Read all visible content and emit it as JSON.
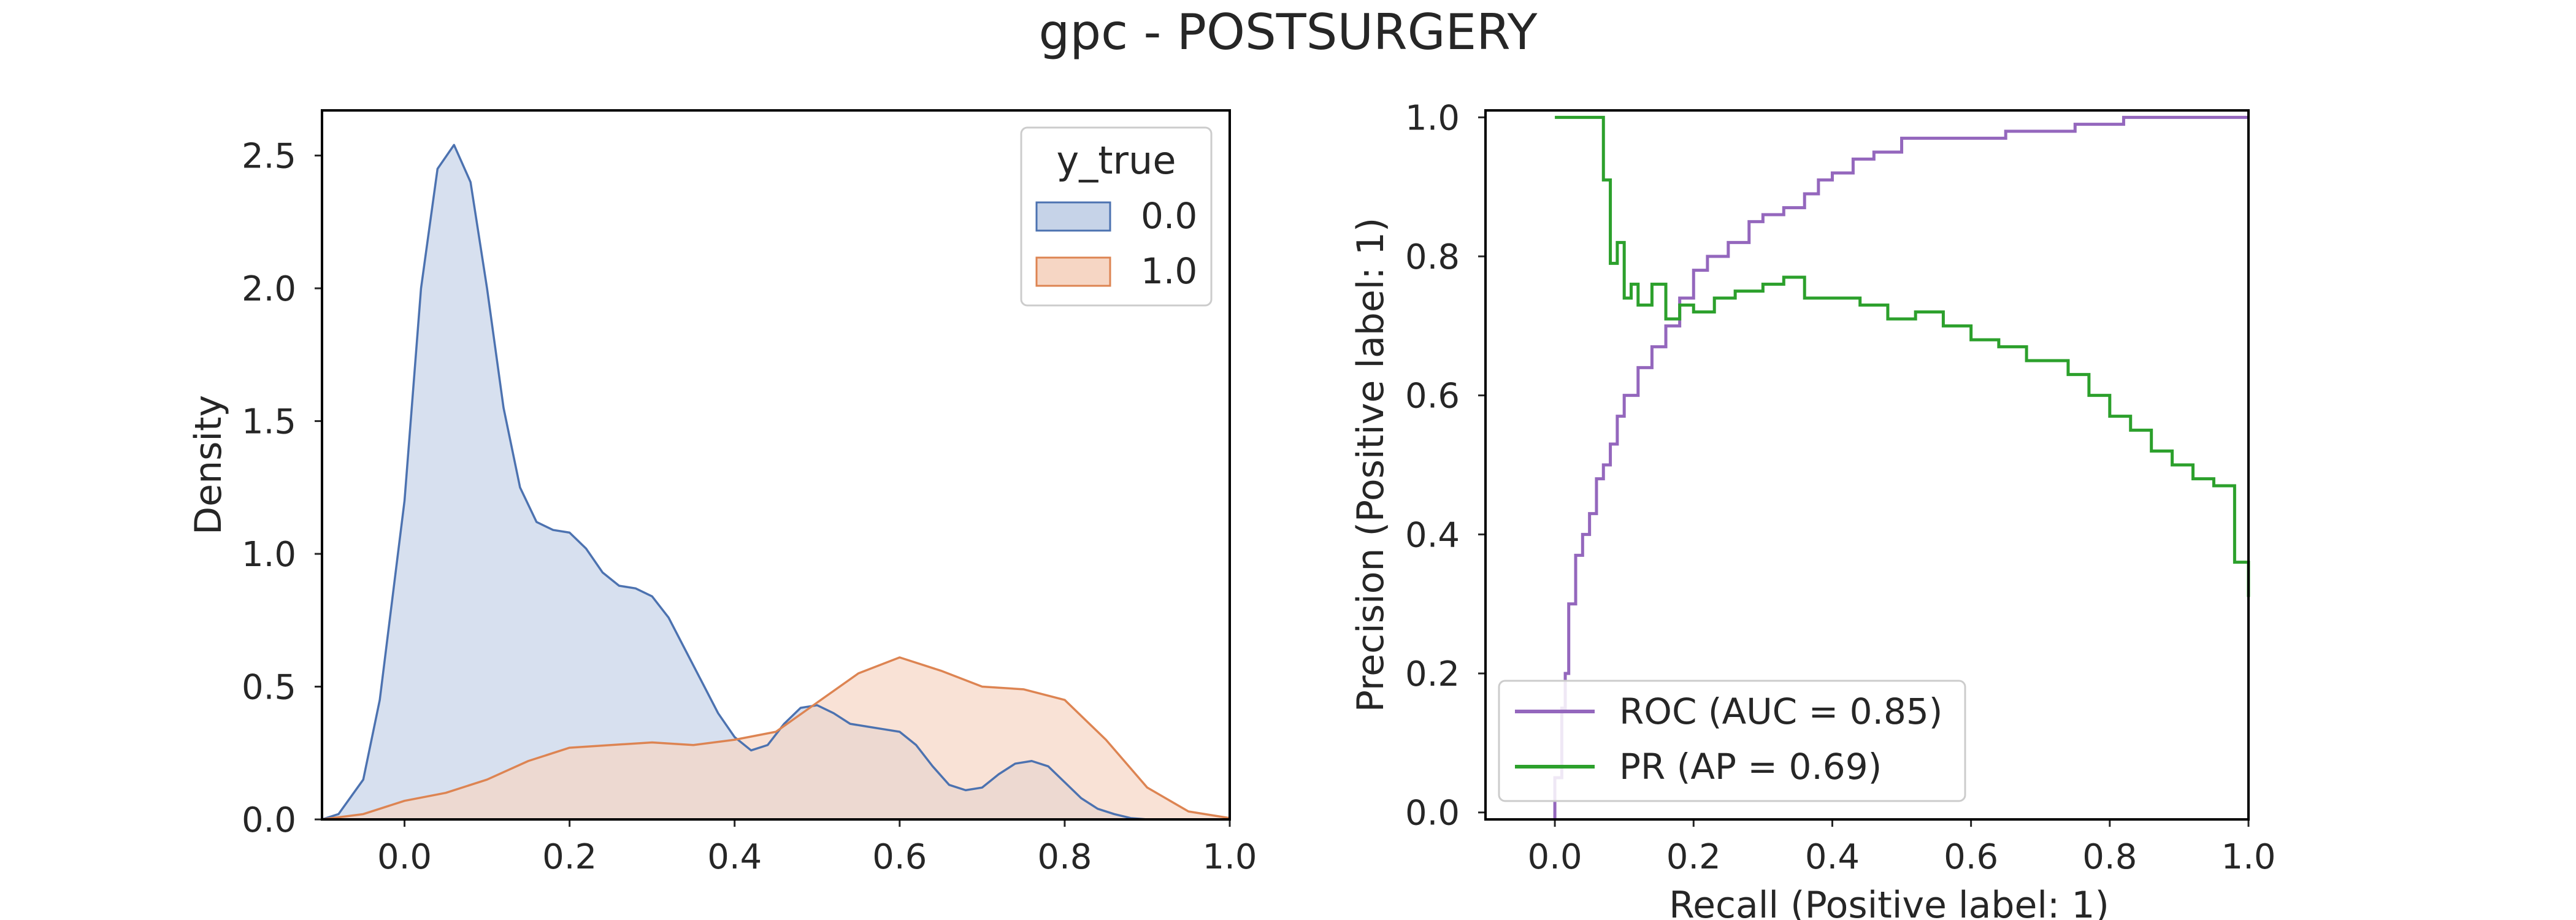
{
  "figure_title": "gpc - POSTSURGERY",
  "chart_data": [
    {
      "type": "area",
      "kind": "kde-density",
      "title": "",
      "xlabel": "",
      "ylabel": "Density",
      "xlim": [
        -0.1,
        1.0
      ],
      "ylim": [
        0.0,
        2.67
      ],
      "x_ticks": [
        0.0,
        0.2,
        0.4,
        0.6,
        0.8,
        1.0
      ],
      "y_ticks": [
        0.0,
        0.5,
        1.0,
        1.5,
        2.0,
        2.5
      ],
      "x_tick_labels": [
        "0.0",
        "0.2",
        "0.4",
        "0.6",
        "0.8",
        "1.0"
      ],
      "y_tick_labels": [
        "0.0",
        "0.5",
        "1.0",
        "1.5",
        "2.0",
        "2.5"
      ],
      "grid": false,
      "legend": {
        "title": "y_true",
        "position": "top-right",
        "labels": [
          "0.0",
          "1.0"
        ]
      },
      "series": [
        {
          "name": "0.0",
          "line_color": "#4c72b0",
          "fill_color": "#c6d3e8",
          "x": [
            -0.1,
            -0.08,
            -0.05,
            -0.03,
            0.0,
            0.02,
            0.04,
            0.06,
            0.08,
            0.1,
            0.12,
            0.14,
            0.16,
            0.18,
            0.2,
            0.22,
            0.24,
            0.26,
            0.28,
            0.3,
            0.32,
            0.34,
            0.36,
            0.38,
            0.4,
            0.42,
            0.44,
            0.46,
            0.48,
            0.5,
            0.52,
            0.54,
            0.56,
            0.58,
            0.6,
            0.62,
            0.64,
            0.66,
            0.68,
            0.7,
            0.72,
            0.74,
            0.76,
            0.78,
            0.8,
            0.82,
            0.84,
            0.86,
            0.88,
            0.9
          ],
          "y": [
            0.0,
            0.02,
            0.15,
            0.45,
            1.2,
            2.0,
            2.45,
            2.54,
            2.4,
            2.0,
            1.55,
            1.25,
            1.12,
            1.09,
            1.08,
            1.02,
            0.93,
            0.88,
            0.87,
            0.84,
            0.76,
            0.64,
            0.52,
            0.4,
            0.31,
            0.26,
            0.28,
            0.36,
            0.42,
            0.43,
            0.4,
            0.36,
            0.35,
            0.34,
            0.33,
            0.28,
            0.2,
            0.13,
            0.11,
            0.12,
            0.17,
            0.21,
            0.22,
            0.2,
            0.14,
            0.08,
            0.04,
            0.02,
            0.005,
            0.0
          ]
        },
        {
          "name": "1.0",
          "line_color": "#dd8452",
          "fill_color": "#f6d6c4",
          "x": [
            -0.1,
            -0.05,
            0.0,
            0.05,
            0.1,
            0.15,
            0.2,
            0.25,
            0.3,
            0.35,
            0.4,
            0.45,
            0.5,
            0.55,
            0.6,
            0.65,
            0.7,
            0.75,
            0.8,
            0.85,
            0.9,
            0.95,
            1.0
          ],
          "y": [
            0.0,
            0.02,
            0.07,
            0.1,
            0.15,
            0.22,
            0.27,
            0.28,
            0.29,
            0.28,
            0.3,
            0.33,
            0.44,
            0.55,
            0.61,
            0.56,
            0.5,
            0.49,
            0.45,
            0.3,
            0.12,
            0.03,
            0.005
          ]
        }
      ]
    },
    {
      "type": "line",
      "kind": "roc-pr-step",
      "title": "",
      "xlabel": "Recall (Positive label: 1)",
      "ylabel": "Precision (Positive label: 1)",
      "xlim": [
        -0.1,
        1.0
      ],
      "ylim": [
        -0.01,
        1.01
      ],
      "x_ticks": [
        0.0,
        0.2,
        0.4,
        0.6,
        0.8,
        1.0
      ],
      "y_ticks": [
        0.0,
        0.2,
        0.4,
        0.6,
        0.8,
        1.0
      ],
      "x_tick_labels": [
        "0.0",
        "0.2",
        "0.4",
        "0.6",
        "0.8",
        "1.0"
      ],
      "y_tick_labels": [
        "0.0",
        "0.2",
        "0.4",
        "0.6",
        "0.8",
        "1.0"
      ],
      "grid": false,
      "legend": {
        "position": "lower-left",
        "labels": [
          "ROC (AUC = 0.85)",
          "PR (AP = 0.69)"
        ]
      },
      "series": [
        {
          "name": "ROC (AUC = 0.85)",
          "color": "#9467bd",
          "x": [
            0.0,
            0.0,
            0.01,
            0.01,
            0.015,
            0.015,
            0.02,
            0.02,
            0.03,
            0.03,
            0.04,
            0.04,
            0.05,
            0.05,
            0.06,
            0.06,
            0.07,
            0.07,
            0.08,
            0.08,
            0.09,
            0.09,
            0.1,
            0.1,
            0.12,
            0.12,
            0.14,
            0.14,
            0.16,
            0.16,
            0.18,
            0.18,
            0.2,
            0.2,
            0.22,
            0.22,
            0.25,
            0.25,
            0.28,
            0.28,
            0.3,
            0.3,
            0.33,
            0.33,
            0.36,
            0.36,
            0.38,
            0.38,
            0.4,
            0.4,
            0.43,
            0.43,
            0.46,
            0.46,
            0.5,
            0.5,
            0.55,
            0.55,
            0.65,
            0.65,
            0.75,
            0.75,
            0.82,
            0.82,
            1.0
          ],
          "y": [
            -0.01,
            0.05,
            0.05,
            0.15,
            0.15,
            0.2,
            0.2,
            0.3,
            0.3,
            0.37,
            0.37,
            0.4,
            0.4,
            0.43,
            0.43,
            0.48,
            0.48,
            0.5,
            0.5,
            0.53,
            0.53,
            0.57,
            0.57,
            0.6,
            0.6,
            0.64,
            0.64,
            0.67,
            0.67,
            0.7,
            0.7,
            0.74,
            0.74,
            0.78,
            0.78,
            0.8,
            0.8,
            0.82,
            0.82,
            0.85,
            0.85,
            0.86,
            0.86,
            0.87,
            0.87,
            0.89,
            0.89,
            0.91,
            0.91,
            0.92,
            0.92,
            0.94,
            0.94,
            0.95,
            0.95,
            0.97,
            0.97,
            0.97,
            0.97,
            0.98,
            0.98,
            0.99,
            0.99,
            1.0,
            1.0
          ]
        },
        {
          "name": "PR (AP = 0.69)",
          "color": "#2ca02c",
          "x": [
            0.0,
            0.07,
            0.07,
            0.08,
            0.08,
            0.09,
            0.09,
            0.1,
            0.1,
            0.11,
            0.11,
            0.12,
            0.12,
            0.14,
            0.14,
            0.16,
            0.16,
            0.18,
            0.18,
            0.2,
            0.2,
            0.23,
            0.23,
            0.26,
            0.26,
            0.3,
            0.3,
            0.33,
            0.33,
            0.36,
            0.36,
            0.4,
            0.4,
            0.44,
            0.44,
            0.48,
            0.48,
            0.52,
            0.52,
            0.56,
            0.56,
            0.6,
            0.6,
            0.64,
            0.64,
            0.68,
            0.68,
            0.72,
            0.72,
            0.74,
            0.74,
            0.77,
            0.77,
            0.8,
            0.8,
            0.83,
            0.83,
            0.86,
            0.86,
            0.89,
            0.89,
            0.92,
            0.92,
            0.95,
            0.95,
            0.98,
            0.98,
            1.0,
            1.0
          ],
          "y": [
            1.0,
            1.0,
            0.91,
            0.91,
            0.79,
            0.79,
            0.82,
            0.82,
            0.74,
            0.74,
            0.76,
            0.76,
            0.73,
            0.73,
            0.76,
            0.76,
            0.71,
            0.71,
            0.73,
            0.73,
            0.72,
            0.72,
            0.74,
            0.74,
            0.75,
            0.75,
            0.76,
            0.76,
            0.77,
            0.77,
            0.74,
            0.74,
            0.74,
            0.74,
            0.73,
            0.73,
            0.71,
            0.71,
            0.72,
            0.72,
            0.7,
            0.7,
            0.68,
            0.68,
            0.67,
            0.67,
            0.65,
            0.65,
            0.65,
            0.65,
            0.63,
            0.63,
            0.6,
            0.6,
            0.57,
            0.57,
            0.55,
            0.55,
            0.52,
            0.52,
            0.5,
            0.5,
            0.48,
            0.48,
            0.47,
            0.47,
            0.36,
            0.36,
            0.31
          ]
        }
      ]
    }
  ]
}
